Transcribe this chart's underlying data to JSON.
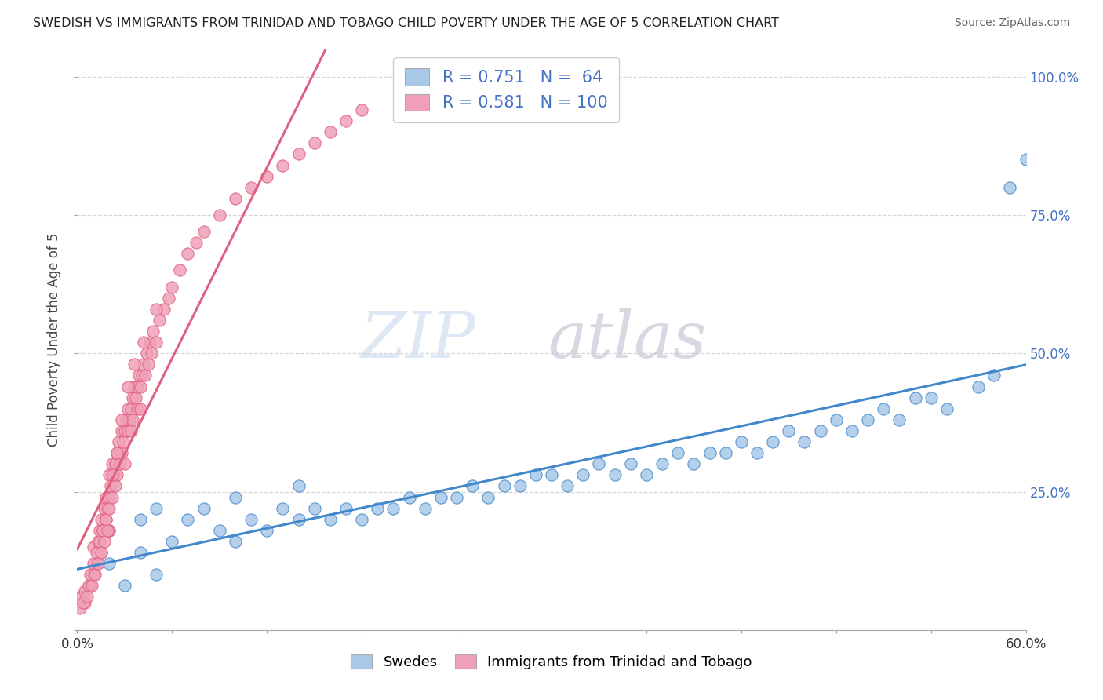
{
  "title": "SWEDISH VS IMMIGRANTS FROM TRINIDAD AND TOBAGO CHILD POVERTY UNDER THE AGE OF 5 CORRELATION CHART",
  "source": "Source: ZipAtlas.com",
  "ylabel": "Child Poverty Under the Age of 5",
  "xlim": [
    0.0,
    0.6
  ],
  "ylim": [
    0.0,
    1.05
  ],
  "xticks": [
    0.0,
    0.06,
    0.12,
    0.18,
    0.24,
    0.3,
    0.36,
    0.42,
    0.48,
    0.54,
    0.6
  ],
  "xtick_labels_show": [
    0,
    10
  ],
  "yticks": [
    0.0,
    0.25,
    0.5,
    0.75,
    1.0
  ],
  "blue_R": 0.751,
  "blue_N": 64,
  "pink_R": 0.581,
  "pink_N": 100,
  "blue_color": "#A8C8E8",
  "pink_color": "#F0A0B8",
  "blue_line_color": "#4488CC",
  "pink_line_color": "#E06080",
  "grid_color": "#CCCCCC",
  "legend_label_blue": "Swedes",
  "legend_label_pink": "Immigrants from Trinidad and Tobago",
  "blue_seed": 42,
  "pink_seed": 7,
  "blue_x": [
    0.01,
    0.02,
    0.02,
    0.03,
    0.04,
    0.04,
    0.05,
    0.05,
    0.06,
    0.07,
    0.08,
    0.09,
    0.1,
    0.1,
    0.11,
    0.12,
    0.13,
    0.14,
    0.14,
    0.15,
    0.16,
    0.17,
    0.18,
    0.19,
    0.2,
    0.21,
    0.22,
    0.23,
    0.24,
    0.25,
    0.26,
    0.27,
    0.28,
    0.29,
    0.3,
    0.31,
    0.32,
    0.33,
    0.34,
    0.35,
    0.36,
    0.37,
    0.38,
    0.39,
    0.4,
    0.41,
    0.42,
    0.43,
    0.44,
    0.45,
    0.46,
    0.47,
    0.48,
    0.49,
    0.5,
    0.51,
    0.52,
    0.53,
    0.54,
    0.55,
    0.57,
    0.58,
    0.59,
    0.6
  ],
  "blue_y": [
    0.1,
    0.12,
    0.18,
    0.08,
    0.14,
    0.2,
    0.1,
    0.22,
    0.16,
    0.2,
    0.22,
    0.18,
    0.16,
    0.24,
    0.2,
    0.18,
    0.22,
    0.2,
    0.26,
    0.22,
    0.2,
    0.22,
    0.2,
    0.22,
    0.22,
    0.24,
    0.22,
    0.24,
    0.24,
    0.26,
    0.24,
    0.26,
    0.26,
    0.28,
    0.28,
    0.26,
    0.28,
    0.3,
    0.28,
    0.3,
    0.28,
    0.3,
    0.32,
    0.3,
    0.32,
    0.32,
    0.34,
    0.32,
    0.34,
    0.36,
    0.34,
    0.36,
    0.38,
    0.36,
    0.38,
    0.4,
    0.38,
    0.42,
    0.42,
    0.4,
    0.44,
    0.46,
    0.8,
    0.85
  ],
  "pink_x": [
    0.005,
    0.008,
    0.01,
    0.01,
    0.012,
    0.013,
    0.014,
    0.015,
    0.015,
    0.016,
    0.017,
    0.018,
    0.018,
    0.019,
    0.02,
    0.02,
    0.02,
    0.021,
    0.022,
    0.022,
    0.023,
    0.024,
    0.024,
    0.025,
    0.025,
    0.026,
    0.027,
    0.028,
    0.028,
    0.029,
    0.03,
    0.03,
    0.031,
    0.032,
    0.032,
    0.033,
    0.034,
    0.034,
    0.035,
    0.035,
    0.036,
    0.037,
    0.038,
    0.038,
    0.039,
    0.04,
    0.04,
    0.041,
    0.042,
    0.043,
    0.044,
    0.045,
    0.046,
    0.047,
    0.048,
    0.05,
    0.052,
    0.055,
    0.058,
    0.06,
    0.065,
    0.07,
    0.075,
    0.08,
    0.09,
    0.1,
    0.11,
    0.12,
    0.13,
    0.14,
    0.15,
    0.16,
    0.17,
    0.18,
    0.002,
    0.003,
    0.004,
    0.005,
    0.006,
    0.007,
    0.008,
    0.009,
    0.01,
    0.011,
    0.012,
    0.013,
    0.014,
    0.015,
    0.016,
    0.017,
    0.018,
    0.019,
    0.02,
    0.022,
    0.025,
    0.028,
    0.032,
    0.036,
    0.042,
    0.05
  ],
  "pink_y": [
    0.05,
    0.08,
    0.1,
    0.15,
    0.12,
    0.16,
    0.18,
    0.14,
    0.2,
    0.18,
    0.22,
    0.2,
    0.24,
    0.22,
    0.24,
    0.18,
    0.28,
    0.26,
    0.24,
    0.3,
    0.28,
    0.3,
    0.26,
    0.32,
    0.28,
    0.34,
    0.3,
    0.32,
    0.36,
    0.34,
    0.36,
    0.3,
    0.38,
    0.36,
    0.4,
    0.38,
    0.4,
    0.36,
    0.42,
    0.38,
    0.44,
    0.42,
    0.44,
    0.4,
    0.46,
    0.44,
    0.4,
    0.46,
    0.48,
    0.46,
    0.5,
    0.48,
    0.52,
    0.5,
    0.54,
    0.52,
    0.56,
    0.58,
    0.6,
    0.62,
    0.65,
    0.68,
    0.7,
    0.72,
    0.75,
    0.78,
    0.8,
    0.82,
    0.84,
    0.86,
    0.88,
    0.9,
    0.92,
    0.94,
    0.04,
    0.06,
    0.05,
    0.07,
    0.06,
    0.08,
    0.1,
    0.08,
    0.12,
    0.1,
    0.14,
    0.12,
    0.16,
    0.14,
    0.18,
    0.16,
    0.2,
    0.18,
    0.22,
    0.28,
    0.32,
    0.38,
    0.44,
    0.48,
    0.52,
    0.58
  ]
}
